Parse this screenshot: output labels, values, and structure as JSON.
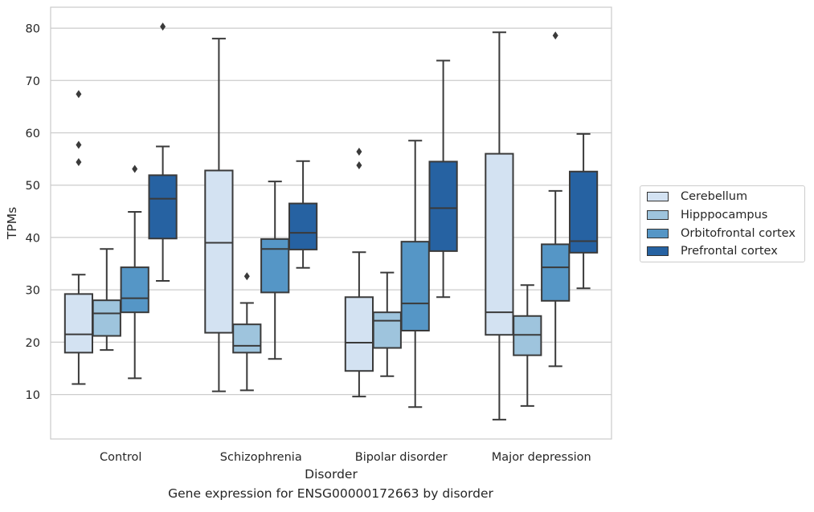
{
  "chart_data": {
    "type": "box",
    "xlabel": "Disorder",
    "ylabel": "TPMs",
    "caption": "Gene expression for ENSG00000172663 by disorder",
    "ylim": [
      1.5,
      84
    ],
    "yticks": [
      10,
      20,
      30,
      40,
      50,
      60,
      70,
      80
    ],
    "grid": true,
    "legend_position": "right",
    "categories": [
      "Control",
      "Schizophrenia",
      "Bipolar disorder",
      "Major depression"
    ],
    "series": [
      {
        "name": "Cerebellum",
        "color": "#d3e2f2",
        "boxes": [
          {
            "whisker_low": 12.0,
            "q1": 18.0,
            "median": 21.5,
            "q3": 29.2,
            "whisker_high": 32.9,
            "outliers": [
              57.7,
              54.4,
              67.4
            ]
          },
          {
            "whisker_low": 10.6,
            "q1": 21.8,
            "median": 39.0,
            "q3": 52.8,
            "whisker_high": 78.0,
            "outliers": []
          },
          {
            "whisker_low": 9.6,
            "q1": 14.5,
            "median": 19.9,
            "q3": 28.6,
            "whisker_high": 37.2,
            "outliers": [
              56.4,
              53.8
            ]
          },
          {
            "whisker_low": 5.2,
            "q1": 21.4,
            "median": 25.7,
            "q3": 56.0,
            "whisker_high": 79.2,
            "outliers": []
          }
        ]
      },
      {
        "name": "Hipppocampus",
        "color": "#9ec4dd",
        "boxes": [
          {
            "whisker_low": 18.5,
            "q1": 21.2,
            "median": 25.5,
            "q3": 28.0,
            "whisker_high": 37.8,
            "outliers": []
          },
          {
            "whisker_low": 10.8,
            "q1": 18.0,
            "median": 19.3,
            "q3": 23.4,
            "whisker_high": 27.5,
            "outliers": [
              32.6
            ]
          },
          {
            "whisker_low": 13.5,
            "q1": 18.9,
            "median": 24.1,
            "q3": 25.7,
            "whisker_high": 33.3,
            "outliers": []
          },
          {
            "whisker_low": 7.8,
            "q1": 17.5,
            "median": 21.4,
            "q3": 25.0,
            "whisker_high": 30.9,
            "outliers": []
          }
        ]
      },
      {
        "name": "Orbitofrontal cortex",
        "color": "#5596c6",
        "boxes": [
          {
            "whisker_low": 13.1,
            "q1": 25.7,
            "median": 28.4,
            "q3": 34.3,
            "whisker_high": 44.9,
            "outliers": [
              53.1
            ]
          },
          {
            "whisker_low": 16.8,
            "q1": 29.5,
            "median": 37.8,
            "q3": 39.7,
            "whisker_high": 50.7,
            "outliers": []
          },
          {
            "whisker_low": 7.6,
            "q1": 22.2,
            "median": 27.4,
            "q3": 39.2,
            "whisker_high": 58.5,
            "outliers": []
          },
          {
            "whisker_low": 15.4,
            "q1": 27.9,
            "median": 34.3,
            "q3": 38.7,
            "whisker_high": 48.9,
            "outliers": [
              78.6
            ]
          }
        ]
      },
      {
        "name": "Prefrontal cortex",
        "color": "#2662a2",
        "boxes": [
          {
            "whisker_low": 31.7,
            "q1": 39.8,
            "median": 47.4,
            "q3": 51.9,
            "whisker_high": 57.4,
            "outliers": [
              80.3
            ]
          },
          {
            "whisker_low": 34.2,
            "q1": 37.7,
            "median": 40.9,
            "q3": 46.5,
            "whisker_high": 54.6,
            "outliers": []
          },
          {
            "whisker_low": 28.6,
            "q1": 37.4,
            "median": 45.6,
            "q3": 54.5,
            "whisker_high": 73.8,
            "outliers": []
          },
          {
            "whisker_low": 30.3,
            "q1": 37.1,
            "median": 39.3,
            "q3": 52.6,
            "whisker_high": 59.8,
            "outliers": []
          }
        ]
      }
    ]
  }
}
